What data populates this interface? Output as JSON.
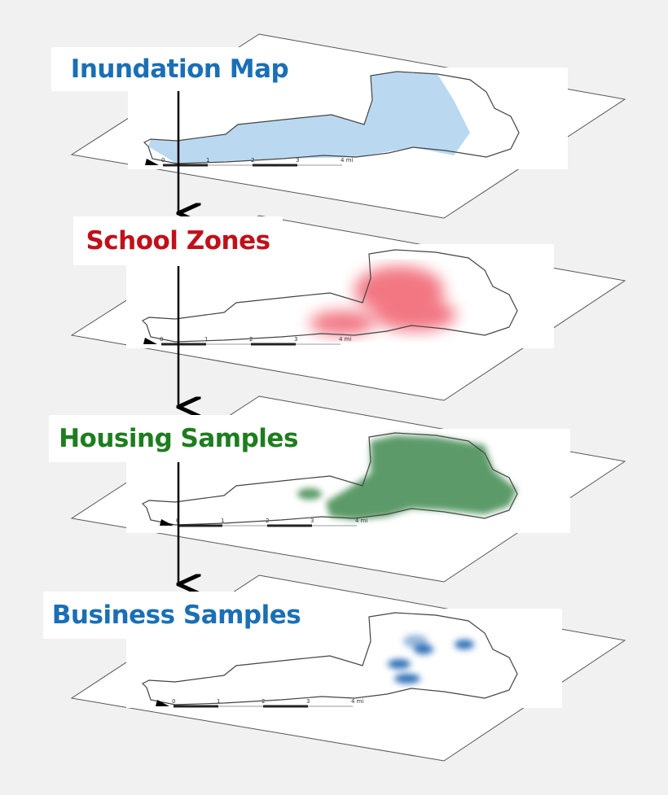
{
  "layers": [
    {
      "label": "Inundation Map",
      "color": "#1a6fb5",
      "fill": "#a9cfee"
    },
    {
      "label": "School Zones",
      "color": "#c0101a",
      "fill": "#f0606e"
    },
    {
      "label": "Housing Samples",
      "color": "#1e7d1e",
      "fill": "#3f8a4f"
    },
    {
      "label": "Business Samples",
      "color": "#1a6fb5",
      "fill": "#2f6fb8"
    }
  ],
  "scale_bar": {
    "ticks": [
      "0",
      "1",
      "2",
      "3",
      "4"
    ],
    "unit": "mi"
  }
}
